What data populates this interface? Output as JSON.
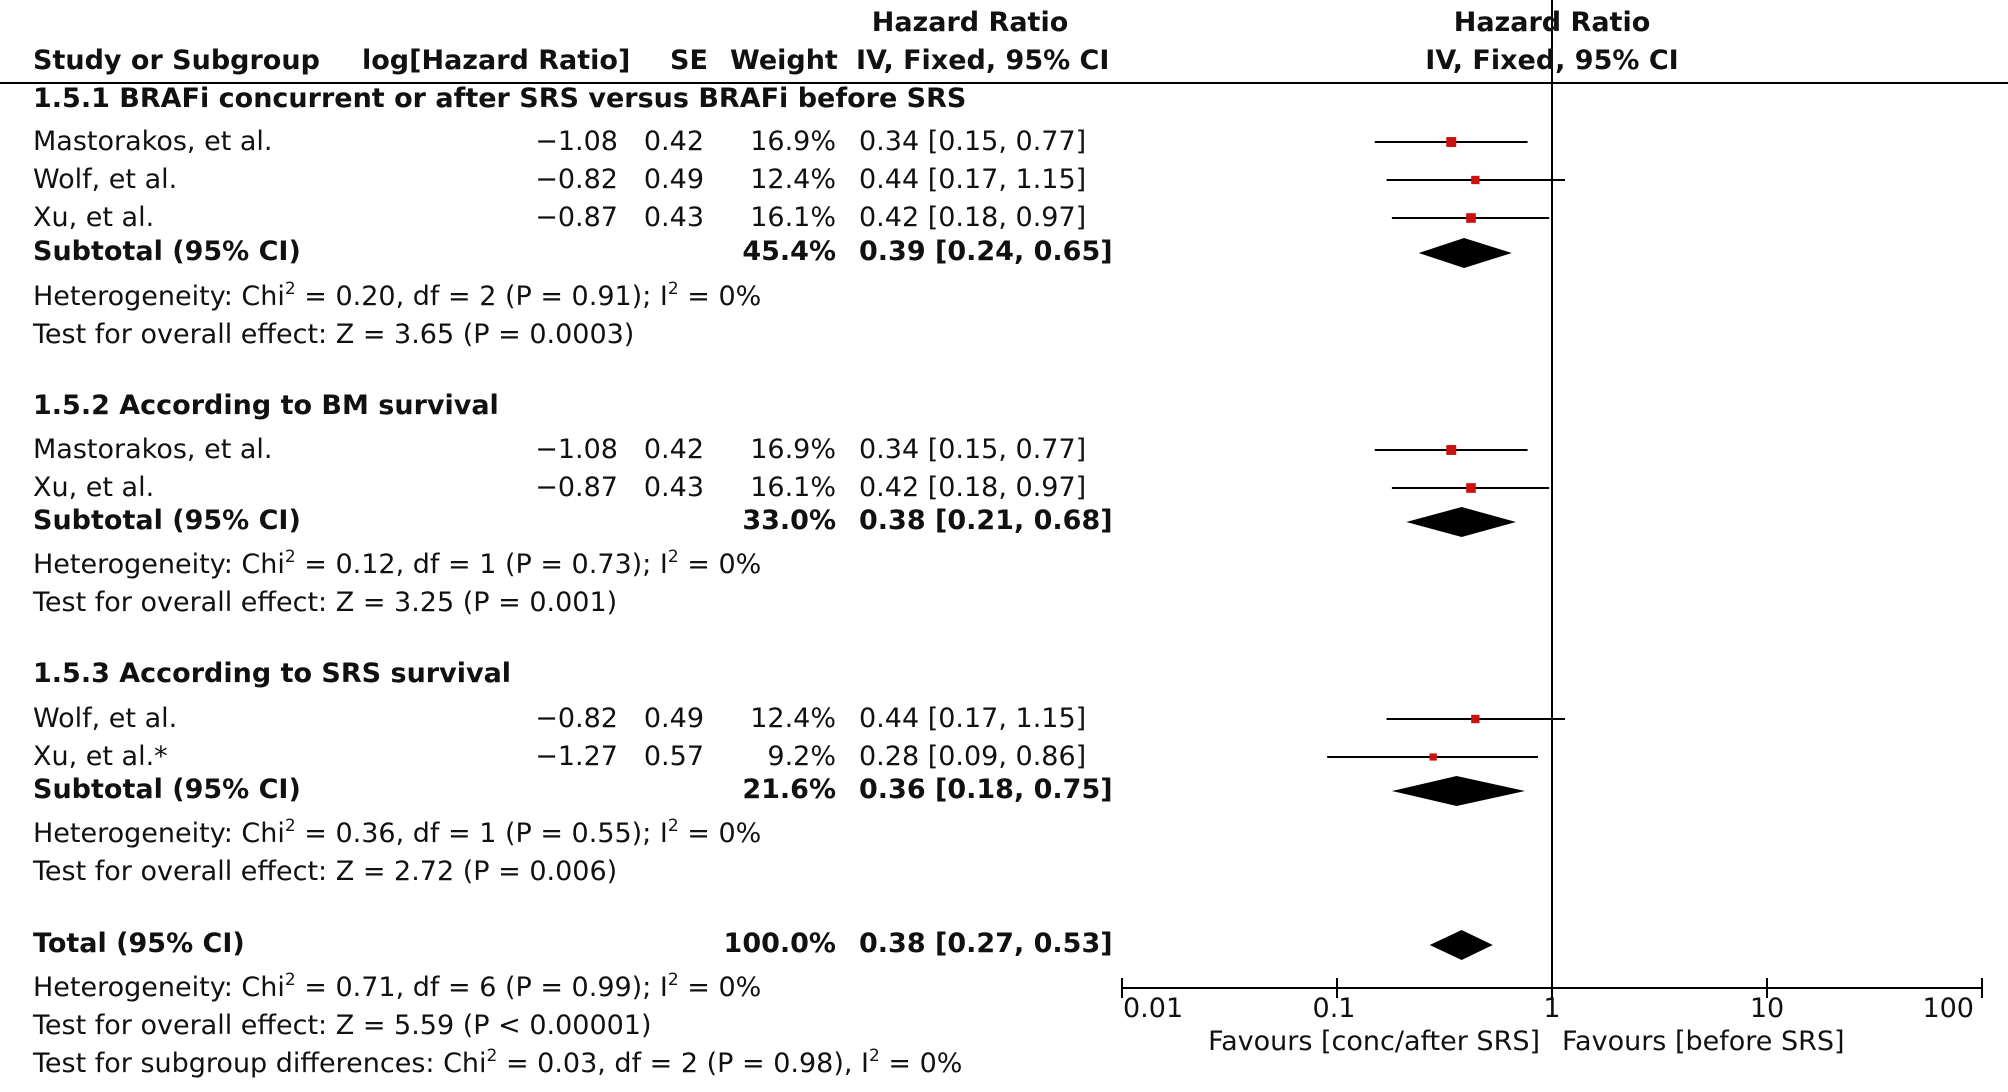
{
  "headers": {
    "study": "Study or Subgroup",
    "loghr": "log[Hazard Ratio]",
    "se": "SE",
    "weight": "Weight",
    "hr_title": "Hazard Ratio",
    "hr_method": "IV, Fixed, 95% CI",
    "plot_title": "Hazard Ratio",
    "plot_method": "IV, Fixed, 95% CI"
  },
  "groups": [
    {
      "title": "1.5.1 BRAFi concurrent or after SRS versus BRAFi before SRS",
      "studies": [
        {
          "name": "Mastorakos, et al.",
          "loghr": "−1.08",
          "se": "0.42",
          "weight": "16.9%",
          "ci_text": "0.34 [0.15, 0.77]"
        },
        {
          "name": "Wolf, et al.",
          "loghr": "−0.82",
          "se": "0.49",
          "weight": "12.4%",
          "ci_text": "0.44 [0.17, 1.15]"
        },
        {
          "name": "Xu, et al.",
          "loghr": "−0.87",
          "se": "0.43",
          "weight": "16.1%",
          "ci_text": "0.42 [0.18, 0.97]"
        }
      ],
      "subtotal": {
        "label": "Subtotal (95% CI)",
        "weight": "45.4%",
        "ci_text": "0.39 [0.24, 0.65]"
      },
      "heterogeneity": {
        "prefix": "Heterogeneity: Chi",
        "exp": "2",
        "mid": " = 0.20, df = 2 (P = 0.91); I",
        "exp2": "2",
        "suffix": " = 0%"
      },
      "overall": "Test for overall effect: Z = 3.65 (P = 0.0003)"
    },
    {
      "title": "1.5.2 According to BM survival",
      "studies": [
        {
          "name": "Mastorakos, et al.",
          "loghr": "−1.08",
          "se": "0.42",
          "weight": "16.9%",
          "ci_text": "0.34 [0.15, 0.77]"
        },
        {
          "name": "Xu, et al.",
          "loghr": "−0.87",
          "se": "0.43",
          "weight": "16.1%",
          "ci_text": "0.42 [0.18, 0.97]"
        }
      ],
      "subtotal": {
        "label": "Subtotal (95% CI)",
        "weight": "33.0%",
        "ci_text": "0.38 [0.21, 0.68]"
      },
      "heterogeneity": {
        "prefix": "Heterogeneity: Chi",
        "exp": "2",
        "mid": " = 0.12, df = 1 (P = 0.73); I",
        "exp2": "2",
        "suffix": " = 0%"
      },
      "overall": "Test for overall effect: Z = 3.25 (P = 0.001)"
    },
    {
      "title": "1.5.3 According to SRS survival",
      "studies": [
        {
          "name": "Wolf, et al.",
          "loghr": "−0.82",
          "se": "0.49",
          "weight": "12.4%",
          "ci_text": "0.44 [0.17, 1.15]"
        },
        {
          "name": "Xu, et al.*",
          "loghr": "−1.27",
          "se": "0.57",
          "weight": "9.2%",
          "ci_text": "0.28 [0.09, 0.86]"
        }
      ],
      "subtotal": {
        "label": "Subtotal (95% CI)",
        "weight": "21.6%",
        "ci_text": "0.36 [0.18, 0.75]"
      },
      "heterogeneity": {
        "prefix": "Heterogeneity: Chi",
        "exp": "2",
        "mid": " = 0.36, df = 1 (P = 0.55); I",
        "exp2": "2",
        "suffix": " = 0%"
      },
      "overall": "Test for overall effect: Z = 2.72 (P = 0.006)"
    }
  ],
  "total": {
    "label": "Total (95% CI)",
    "weight": "100.0%",
    "ci_text": "0.38 [0.27, 0.53]",
    "heterogeneity": {
      "prefix": "Heterogeneity: Chi",
      "exp": "2",
      "mid": " = 0.71, df = 6 (P = 0.99); I",
      "exp2": "2",
      "suffix": " = 0%"
    },
    "overall": "Test for overall effect: Z = 5.59 (P < 0.00001)",
    "subgroup": {
      "prefix": "Test for subgroup differences: Chi",
      "exp": "2",
      "mid": " = 0.03, df = 2 (P = 0.98), I",
      "exp2": "2",
      "suffix": " = 0%"
    }
  },
  "axis": {
    "ticks": [
      "0.01",
      "0.1",
      "1",
      "10",
      "100"
    ],
    "favours_left": "Favours [conc/after SRS]",
    "favours_right": "Favours [before SRS]"
  },
  "colors": {
    "marker": "#cc1111",
    "diamond": "#000000",
    "line": "#000000"
  },
  "chart_data": {
    "type": "forest",
    "title": "Hazard Ratio",
    "xlabel": "IV, Fixed, 95% CI",
    "xscale": "log",
    "xlim": [
      0.01,
      100
    ],
    "reference_line": 1,
    "points": [
      {
        "group": "1.5.1",
        "study": "Mastorakos, et al.",
        "hr": 0.34,
        "lo": 0.15,
        "hi": 0.77,
        "weight": 16.9
      },
      {
        "group": "1.5.1",
        "study": "Wolf, et al.",
        "hr": 0.44,
        "lo": 0.17,
        "hi": 1.15,
        "weight": 12.4
      },
      {
        "group": "1.5.1",
        "study": "Xu, et al.",
        "hr": 0.42,
        "lo": 0.18,
        "hi": 0.97,
        "weight": 16.1
      },
      {
        "group": "1.5.2",
        "study": "Mastorakos, et al.",
        "hr": 0.34,
        "lo": 0.15,
        "hi": 0.77,
        "weight": 16.9
      },
      {
        "group": "1.5.2",
        "study": "Xu, et al.",
        "hr": 0.42,
        "lo": 0.18,
        "hi": 0.97,
        "weight": 16.1
      },
      {
        "group": "1.5.3",
        "study": "Wolf, et al.",
        "hr": 0.44,
        "lo": 0.17,
        "hi": 1.15,
        "weight": 12.4
      },
      {
        "group": "1.5.3",
        "study": "Xu, et al.*",
        "hr": 0.28,
        "lo": 0.09,
        "hi": 0.86,
        "weight": 9.2
      }
    ],
    "diamonds": [
      {
        "group": "1.5.1",
        "label": "Subtotal (95% CI)",
        "hr": 0.39,
        "lo": 0.24,
        "hi": 0.65
      },
      {
        "group": "1.5.2",
        "label": "Subtotal (95% CI)",
        "hr": 0.38,
        "lo": 0.21,
        "hi": 0.68
      },
      {
        "group": "1.5.3",
        "label": "Subtotal (95% CI)",
        "hr": 0.36,
        "lo": 0.18,
        "hi": 0.75
      },
      {
        "group": "total",
        "label": "Total (95% CI)",
        "hr": 0.38,
        "lo": 0.27,
        "hi": 0.53
      }
    ]
  }
}
